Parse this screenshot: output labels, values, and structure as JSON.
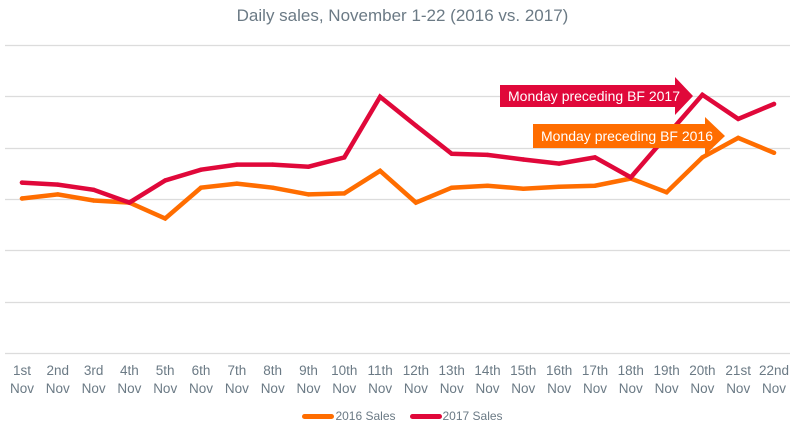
{
  "chart_data": {
    "type": "line",
    "title": "Daily sales, November 1-22 (2016 vs. 2017)",
    "xlabel": "",
    "ylabel": "",
    "ylim": [
      0,
      6
    ],
    "grid": true,
    "categories": [
      [
        "1st",
        "Nov"
      ],
      [
        "2nd",
        "Nov"
      ],
      [
        "3rd",
        "Nov"
      ],
      [
        "4th",
        "Nov"
      ],
      [
        "5th",
        "Nov"
      ],
      [
        "6th",
        "Nov"
      ],
      [
        "7th",
        "Nov"
      ],
      [
        "8th",
        "Nov"
      ],
      [
        "9th",
        "Nov"
      ],
      [
        "10th",
        "Nov"
      ],
      [
        "11th",
        "Nov"
      ],
      [
        "12th",
        "Nov"
      ],
      [
        "13th",
        "Nov"
      ],
      [
        "14th",
        "Nov"
      ],
      [
        "15th",
        "Nov"
      ],
      [
        "16th",
        "Nov"
      ],
      [
        "17th",
        "Nov"
      ],
      [
        "18th",
        "Nov"
      ],
      [
        "19th",
        "Nov"
      ],
      [
        "20th",
        "Nov"
      ],
      [
        "21st",
        "Nov"
      ],
      [
        "22nd",
        "Nov"
      ]
    ],
    "series": [
      {
        "name": "2016 Sales",
        "color": "#ff6d00",
        "values": [
          3.01,
          3.09,
          2.97,
          2.93,
          2.62,
          3.22,
          3.3,
          3.22,
          3.09,
          3.11,
          3.55,
          2.93,
          3.22,
          3.26,
          3.2,
          3.24,
          3.26,
          3.4,
          3.13,
          3.81,
          4.19,
          3.9
        ]
      },
      {
        "name": "2017 Sales",
        "color": "#e0083a",
        "values": [
          3.32,
          3.28,
          3.18,
          2.93,
          3.36,
          3.57,
          3.67,
          3.67,
          3.63,
          3.81,
          4.99,
          4.43,
          3.88,
          3.86,
          3.77,
          3.69,
          3.81,
          3.42,
          4.23,
          5.03,
          4.56,
          4.85
        ]
      }
    ],
    "legend_position": "bottom",
    "annotations": [
      {
        "text": "Monday preceding BF 2017",
        "color": "#e0083a",
        "points_to": "20th Nov"
      },
      {
        "text": "Monday preceding BF 2016",
        "color": "#ff6d00",
        "points_to": "21st Nov"
      }
    ]
  }
}
